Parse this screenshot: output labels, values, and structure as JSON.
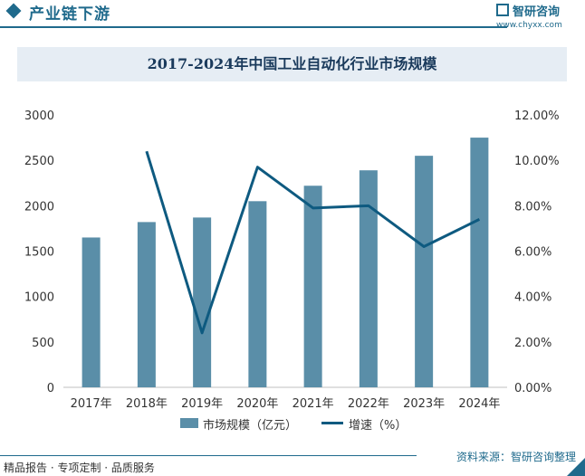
{
  "header": {
    "title": "产业链下游",
    "brand_name": "智研咨询",
    "brand_url": "www.chyxx.com"
  },
  "chart_data": {
    "type": "bar",
    "title": "2017-2024年中国工业自动化行业市场规模",
    "categories": [
      "2017年",
      "2018年",
      "2019年",
      "2020年",
      "2021年",
      "2022年",
      "2023年",
      "2024年"
    ],
    "series": [
      {
        "name": "市场规模（亿元）",
        "type": "bar",
        "axis": "left",
        "color": "#5a8ea8",
        "values": [
          1650,
          1820,
          1870,
          2050,
          2220,
          2390,
          2550,
          2750
        ]
      },
      {
        "name": "增速（%）",
        "type": "line",
        "axis": "right",
        "color": "#0e5a80",
        "values": [
          null,
          10.4,
          2.4,
          9.7,
          7.9,
          8.0,
          6.2,
          7.4
        ]
      }
    ],
    "y_left": {
      "min": 0,
      "max": 3000,
      "ticks": [
        "0",
        "500",
        "1000",
        "1500",
        "2000",
        "2500",
        "3000"
      ]
    },
    "y_right": {
      "min": 0,
      "max": 12,
      "ticks": [
        "0.00%",
        "2.00%",
        "4.00%",
        "6.00%",
        "8.00%",
        "10.00%",
        "12.00%"
      ]
    },
    "grid": false,
    "legend": "bottom"
  },
  "footer": {
    "left": "精品报告 · 专项定制 · 品质服务",
    "source": "资料来源：智研咨询整理"
  }
}
